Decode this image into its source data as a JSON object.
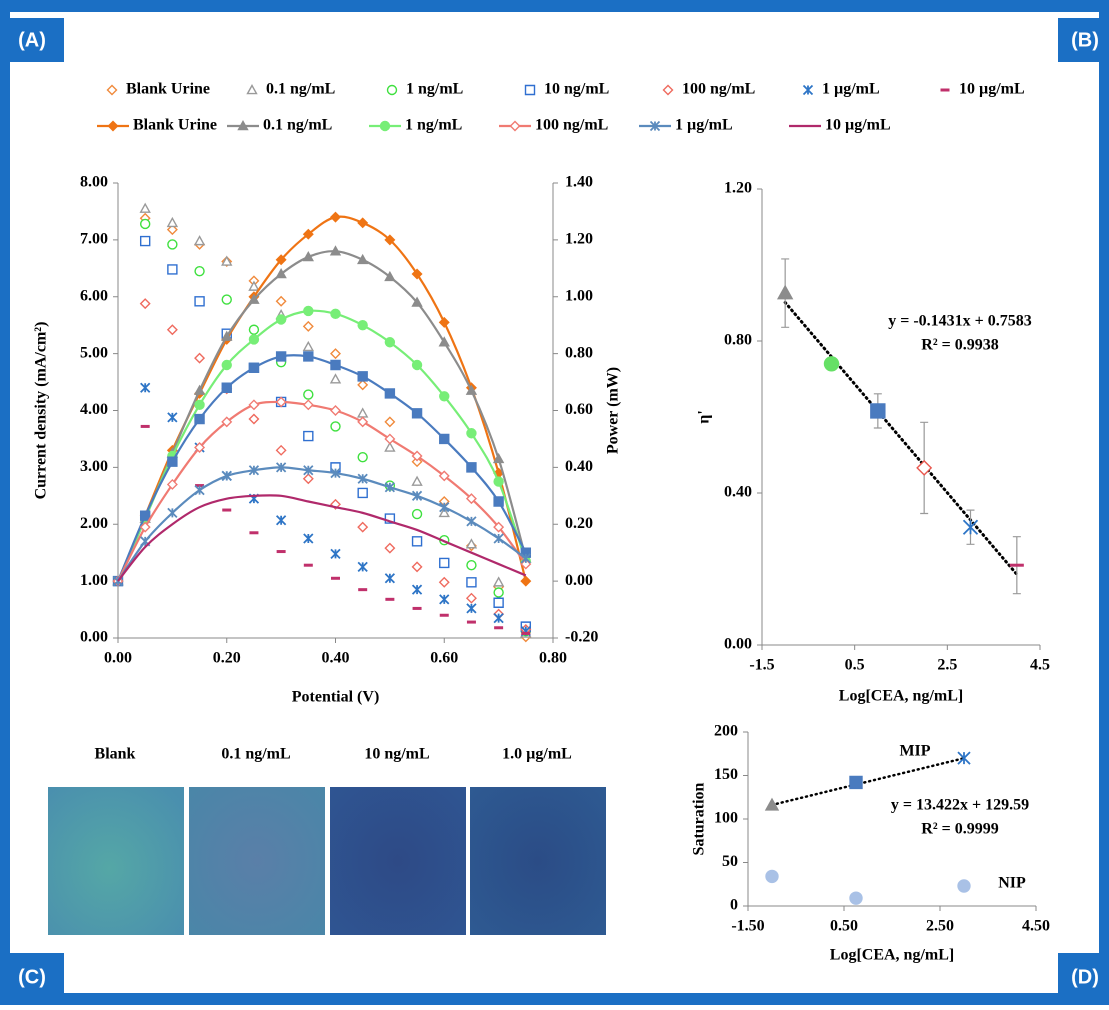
{
  "panel_labels": [
    "(A)",
    "(B)",
    "(C)",
    "(D)"
  ],
  "images": {
    "labels": [
      "Blank",
      "0.1 ng/mL",
      "10 ng/mL",
      "1.0 µg/mL"
    ]
  },
  "chart_data": [
    {
      "type": "combo",
      "xlabel": "Potential (V)",
      "ylabel": "Current density (mA/cm²)",
      "y2label": "Power (mW)",
      "x": [
        0,
        0.05,
        0.1,
        0.15,
        0.2,
        0.25,
        0.3,
        0.35,
        0.4,
        0.45,
        0.5,
        0.55,
        0.6,
        0.65,
        0.7,
        0.75
      ],
      "xlim": [
        0,
        0.8
      ],
      "ylim": [
        0,
        8
      ],
      "y2lim": [
        -0.2,
        1.4
      ],
      "xticks": [
        {
          "value": 0,
          "label": "0.00"
        },
        {
          "value": 0.2,
          "label": "0.20"
        },
        {
          "value": 0.4,
          "label": "0.40"
        },
        {
          "value": 0.6,
          "label": "0.60"
        },
        {
          "value": 0.8,
          "label": "0.80"
        }
      ],
      "yticks": [
        {
          "value": 0,
          "label": "0.00"
        },
        {
          "value": 1,
          "label": "1.00"
        },
        {
          "value": 2,
          "label": "2.00"
        },
        {
          "value": 3,
          "label": "3.00"
        },
        {
          "value": 4,
          "label": "4.00"
        },
        {
          "value": 5,
          "label": "5.00"
        },
        {
          "value": 6,
          "label": "6.00"
        },
        {
          "value": 7,
          "label": "7.00"
        },
        {
          "value": 8,
          "label": "8.00"
        }
      ],
      "y2ticks": [
        {
          "value": -0.2,
          "label": "-0.20"
        },
        {
          "value": 0,
          "label": "0.00"
        },
        {
          "value": 0.2,
          "label": "0.20"
        },
        {
          "value": 0.4,
          "label": "0.40"
        },
        {
          "value": 0.6,
          "label": "0.60"
        },
        {
          "value": 0.8,
          "label": "0.80"
        },
        {
          "value": 1,
          "label": "1.00"
        },
        {
          "value": 1.2,
          "label": "1.20"
        },
        {
          "value": 1.4,
          "label": "1.40"
        }
      ],
      "series": [
        {
          "name": "Blank Urine",
          "color": "#f08a3c",
          "marker": "diamond-open",
          "values": [
            null,
            7.38,
            7.18,
            6.92,
            6.62,
            6.28,
            5.92,
            5.48,
            5.0,
            4.45,
            3.8,
            3.1,
            2.4,
            1.62,
            0.9,
            0.02
          ]
        },
        {
          "name": "0.1 ng/mL",
          "color": "#9a9a9a",
          "marker": "triangle-open",
          "values": [
            null,
            7.55,
            7.3,
            6.98,
            6.62,
            6.18,
            5.68,
            5.12,
            4.55,
            3.95,
            3.35,
            2.75,
            2.2,
            1.65,
            0.98,
            0.08
          ]
        },
        {
          "name": "1 ng/mL",
          "color": "#3ee03e",
          "marker": "circle-open",
          "values": [
            null,
            7.28,
            6.92,
            6.45,
            5.95,
            5.42,
            4.85,
            4.28,
            3.72,
            3.18,
            2.68,
            2.18,
            1.72,
            1.28,
            0.8,
            0.12
          ]
        },
        {
          "name": "10 ng/mL",
          "color": "#2f6fd0",
          "marker": "square-open",
          "values": [
            null,
            6.98,
            6.48,
            5.92,
            5.35,
            4.75,
            4.15,
            3.55,
            3.0,
            2.55,
            2.1,
            1.7,
            1.32,
            0.98,
            0.62,
            0.2
          ]
        },
        {
          "name": "100 ng/mL",
          "color": "#ef6a5e",
          "marker": "diamond-open",
          "values": [
            null,
            5.88,
            5.42,
            4.92,
            4.38,
            3.85,
            3.3,
            2.8,
            2.35,
            1.95,
            1.58,
            1.25,
            0.98,
            0.7,
            0.42,
            0.15
          ]
        },
        {
          "name": "1 µg/mL",
          "color": "#2e75c6",
          "marker": "asterisk",
          "values": [
            null,
            4.4,
            3.88,
            3.35,
            2.85,
            2.45,
            2.07,
            1.75,
            1.48,
            1.25,
            1.05,
            0.85,
            0.68,
            0.52,
            0.35,
            0.12
          ]
        },
        {
          "name": "10 µg/mL",
          "color": "#c0306b",
          "marker": "dash",
          "values": [
            null,
            3.72,
            3.2,
            2.68,
            2.25,
            1.85,
            1.52,
            1.28,
            1.05,
            0.85,
            0.68,
            0.52,
            0.4,
            0.28,
            0.18,
            0.08
          ]
        },
        {
          "name": "Blank Urine",
          "color": "#ef7414",
          "marker": "diamond",
          "axis": "y2",
          "line": true,
          "values": [
            0,
            0.23,
            0.46,
            0.66,
            0.85,
            1.0,
            1.13,
            1.22,
            1.28,
            1.26,
            1.2,
            1.08,
            0.91,
            0.68,
            0.38,
            0.0
          ]
        },
        {
          "name": "0.1 ng/mL",
          "color": "#8c8c8c",
          "marker": "triangle",
          "axis": "y2",
          "line": true,
          "values": [
            0,
            0.22,
            0.45,
            0.67,
            0.86,
            0.99,
            1.08,
            1.14,
            1.16,
            1.13,
            1.07,
            0.98,
            0.84,
            0.67,
            0.43,
            0.08
          ]
        },
        {
          "name": "1 ng/mL",
          "color": "#77ee77",
          "marker": "circle",
          "axis": "y2",
          "line": true,
          "values": [
            0,
            0.22,
            0.44,
            0.62,
            0.76,
            0.85,
            0.92,
            0.95,
            0.94,
            0.9,
            0.84,
            0.76,
            0.65,
            0.52,
            0.35,
            0.07
          ]
        },
        {
          "color": "#4a7bbf",
          "marker": "square",
          "axis": "y2",
          "line": true,
          "values": [
            0,
            0.23,
            0.42,
            0.57,
            0.68,
            0.75,
            0.79,
            0.79,
            0.76,
            0.72,
            0.66,
            0.59,
            0.5,
            0.4,
            0.28,
            0.1
          ]
        },
        {
          "name": "100 ng/mL",
          "color": "#f07a72",
          "marker": "diamond-open",
          "axis": "y2",
          "line": true,
          "values": [
            0,
            0.19,
            0.34,
            0.47,
            0.56,
            0.62,
            0.63,
            0.62,
            0.6,
            0.56,
            0.5,
            0.44,
            0.37,
            0.29,
            0.19,
            0.06
          ]
        },
        {
          "name": "1 µg/mL",
          "color": "#5b8bbd",
          "marker": "asterisk",
          "axis": "y2",
          "line": true,
          "values": [
            0,
            0.14,
            0.24,
            0.32,
            0.37,
            0.39,
            0.4,
            0.39,
            0.38,
            0.36,
            0.33,
            0.3,
            0.26,
            0.21,
            0.15,
            0.08
          ]
        },
        {
          "name": "10 µg/mL",
          "color": "#b0296b",
          "axis": "y2",
          "line": true,
          "values": [
            0,
            0.12,
            0.2,
            0.26,
            0.29,
            0.3,
            0.3,
            0.28,
            0.26,
            0.24,
            0.21,
            0.18,
            0.14,
            0.1,
            0.06,
            0.02
          ]
        }
      ]
    },
    {
      "type": "errorscatter",
      "xlabel": "Log[CEA, ng/mL]",
      "ylabel": "η'",
      "x": [
        -1,
        0,
        1,
        2,
        3,
        4
      ],
      "values": [
        0.926,
        0.74,
        0.616,
        0.466,
        0.31,
        0.21
      ],
      "errors": [
        0.09,
        0.01,
        0.045,
        0.12,
        0.045,
        0.075
      ],
      "colors": [
        "#8c8c8c",
        "#66e066",
        "#4a7bbf",
        "#e8574e",
        "#2e75c6",
        "#c0306b"
      ],
      "markers": [
        "triangle",
        "circle",
        "square",
        "diamond-open",
        "asterisk",
        "dash"
      ],
      "xlim": [
        -1.5,
        4.5
      ],
      "xticks": [
        -1.5,
        0.5,
        2.5,
        4.5
      ],
      "ylim": [
        0,
        1.2
      ],
      "yticks": [
        {
          "value": 0,
          "label": "0.00"
        },
        {
          "value": 0.4,
          "label": "0.40"
        },
        {
          "value": 0.8,
          "label": "0.80"
        },
        {
          "value": 1.2,
          "label": "1.20"
        }
      ],
      "trendline": {
        "slope": -0.1431,
        "intercept": 0.7583
      },
      "annotations": [
        "y = -0.1431x + 0.7583",
        "R² = 0.9938"
      ]
    },
    {
      "type": "scatter",
      "xlabel": "Log[CEA, ng/mL]",
      "ylabel": "Saturation",
      "xlim": [
        -1.5,
        4.5
      ],
      "xticks": [
        {
          "value": -1.5,
          "label": "-1.50"
        },
        {
          "value": 0.5,
          "label": "0.50"
        },
        {
          "value": 2.5,
          "label": "2.50"
        },
        {
          "value": 4.5,
          "label": "4.50"
        }
      ],
      "ylim": [
        0,
        200
      ],
      "yticks": [
        0,
        50,
        100,
        150,
        200
      ],
      "series": [
        {
          "name": "MIP",
          "x": [
            -1,
            0.75,
            3
          ],
          "values": [
            116,
            142,
            170
          ],
          "colors": [
            "#8c8c8c",
            "#4a7bbf",
            "#2e75c6"
          ],
          "markers": [
            "triangle",
            "square",
            "asterisk"
          ]
        },
        {
          "name": "NIP",
          "x": [
            -1,
            0.75,
            3
          ],
          "values": [
            34,
            9,
            23
          ],
          "color": "#a9c1e6",
          "marker": "circle"
        }
      ],
      "trendline": {
        "series": 0,
        "slope": 13.422,
        "intercept": 129.59
      },
      "annotations": [
        "y = 13.422x + 129.59",
        "R² = 0.9999"
      ]
    }
  ]
}
